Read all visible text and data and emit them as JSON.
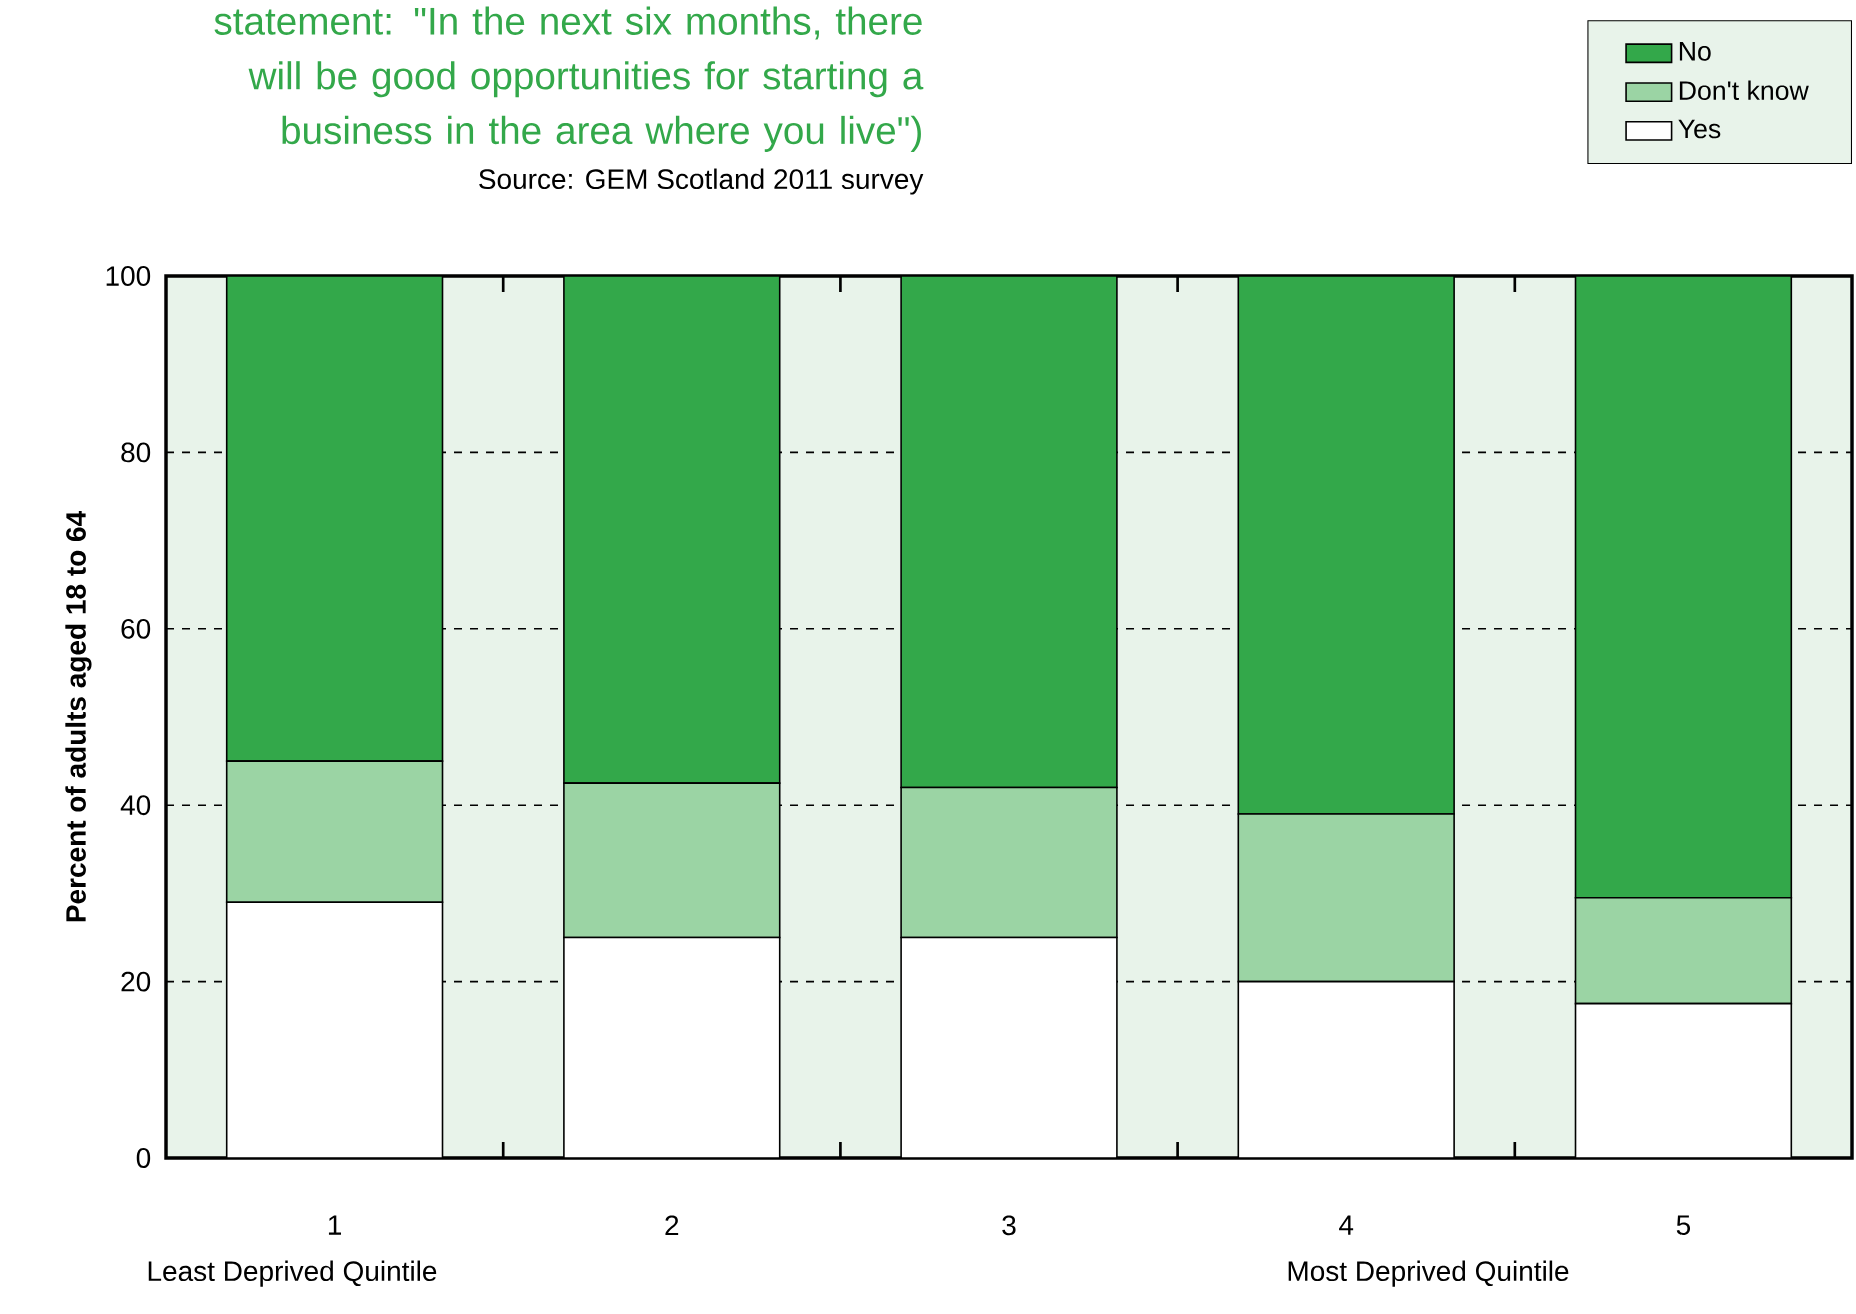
{
  "chart_data": {
    "type": "bar",
    "stacked": true,
    "title": "statement: \"In the next six months, there will be good opportunities for starting a business in the area where you live\")",
    "ylabel": "Percent of  adults aged 18 to 64",
    "categories": [
      "1",
      "2",
      "3",
      "4",
      "5"
    ],
    "series": [
      {
        "name": "Yes",
        "color": "#ffffff",
        "values": [
          29,
          25,
          25,
          20,
          17.5
        ]
      },
      {
        "name": "Don't know",
        "color": "#9bd4a4",
        "values": [
          16,
          17.5,
          17,
          19,
          12
        ]
      },
      {
        "name": "No",
        "color": "#33a84a",
        "values": [
          55,
          57.5,
          58,
          61,
          70.5
        ]
      }
    ],
    "ylim": [
      0,
      100
    ],
    "yticks": [
      0,
      20,
      40,
      60,
      80,
      100
    ],
    "grid": "y",
    "legend": "top right",
    "annotations": [
      "Source: GEM Scotland 2011 survey",
      "Least Deprived Quintile",
      "Most Deprived Quintile"
    ]
  }
}
